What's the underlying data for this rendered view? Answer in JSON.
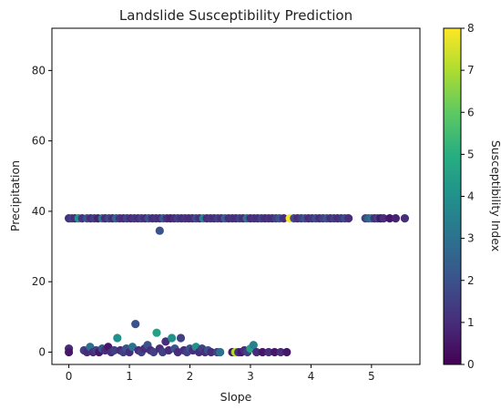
{
  "chart_data": {
    "type": "scatter",
    "title": "Landslide Susceptibility Prediction",
    "xlabel": "Slope",
    "ylabel": "Precipitation",
    "xlim": [
      -0.28,
      5.8
    ],
    "ylim": [
      -3.5,
      92
    ],
    "xticks": [
      0,
      1,
      2,
      3,
      4,
      5
    ],
    "yticks": [
      0,
      20,
      40,
      60,
      80
    ],
    "grid": false,
    "legend": "none",
    "colormap": "viridis",
    "colorbar": {
      "label": "Susceptibility Index",
      "min": 0,
      "max": 8,
      "ticks": [
        0,
        1,
        2,
        3,
        4,
        5,
        6,
        7,
        8
      ]
    },
    "series": [
      {
        "points": [
          [
            0.0,
            38,
            1.0
          ],
          [
            0.05,
            38,
            1.5
          ],
          [
            0.1,
            38,
            1.0
          ],
          [
            0.16,
            38,
            4.0
          ],
          [
            0.22,
            38,
            1.2
          ],
          [
            0.3,
            38,
            2.0
          ],
          [
            0.36,
            38,
            1.0
          ],
          [
            0.42,
            38,
            1.5
          ],
          [
            0.48,
            38,
            0.8
          ],
          [
            0.55,
            38,
            3.0
          ],
          [
            0.6,
            38,
            1.0
          ],
          [
            0.66,
            38,
            1.8
          ],
          [
            0.72,
            38,
            1.0
          ],
          [
            0.78,
            38,
            2.5
          ],
          [
            0.84,
            38,
            1.2
          ],
          [
            0.9,
            38,
            1.0
          ],
          [
            0.96,
            38,
            1.6
          ],
          [
            1.02,
            38,
            1.0
          ],
          [
            1.08,
            38,
            1.3
          ],
          [
            1.14,
            38,
            1.0
          ],
          [
            1.2,
            38,
            1.5
          ],
          [
            1.26,
            38,
            1.0
          ],
          [
            1.32,
            38,
            2.0
          ],
          [
            1.38,
            38,
            1.0
          ],
          [
            1.44,
            38,
            1.2
          ],
          [
            1.5,
            38,
            1.0
          ],
          [
            1.56,
            38,
            2.2
          ],
          [
            1.62,
            38,
            1.0
          ],
          [
            1.68,
            38,
            0.8
          ],
          [
            1.74,
            38,
            1.0
          ],
          [
            1.8,
            38,
            1.5
          ],
          [
            1.86,
            38,
            1.0
          ],
          [
            1.92,
            38,
            1.2
          ],
          [
            1.98,
            38,
            1.0
          ],
          [
            2.04,
            38,
            1.0
          ],
          [
            2.1,
            38,
            1.8
          ],
          [
            2.16,
            38,
            1.0
          ],
          [
            2.22,
            38,
            3.5
          ],
          [
            2.28,
            38,
            1.0
          ],
          [
            2.34,
            38,
            1.2
          ],
          [
            2.4,
            38,
            1.0
          ],
          [
            2.46,
            38,
            1.5
          ],
          [
            2.52,
            38,
            1.0
          ],
          [
            2.58,
            38,
            2.5
          ],
          [
            2.64,
            38,
            1.0
          ],
          [
            2.7,
            38,
            1.2
          ],
          [
            2.76,
            38,
            1.0
          ],
          [
            2.82,
            38,
            1.5
          ],
          [
            2.88,
            38,
            1.0
          ],
          [
            2.94,
            38,
            3.0
          ],
          [
            3.0,
            38,
            1.0
          ],
          [
            3.06,
            38,
            1.2
          ],
          [
            3.12,
            38,
            1.0
          ],
          [
            3.18,
            38,
            1.5
          ],
          [
            3.24,
            38,
            1.0
          ],
          [
            3.3,
            38,
            1.2
          ],
          [
            3.36,
            38,
            1.0
          ],
          [
            3.42,
            38,
            1.5
          ],
          [
            3.48,
            38,
            2.0
          ],
          [
            3.55,
            38,
            1.0
          ],
          [
            3.65,
            38,
            8.0
          ],
          [
            3.72,
            38,
            1.8
          ],
          [
            3.78,
            38,
            1.0
          ],
          [
            3.84,
            38,
            1.5
          ],
          [
            3.9,
            38,
            2.0
          ],
          [
            3.96,
            38,
            1.0
          ],
          [
            4.02,
            38,
            1.2
          ],
          [
            4.08,
            38,
            1.8
          ],
          [
            4.14,
            38,
            1.0
          ],
          [
            4.2,
            38,
            1.5
          ],
          [
            4.26,
            38,
            2.0
          ],
          [
            4.32,
            38,
            1.0
          ],
          [
            4.38,
            38,
            1.5
          ],
          [
            4.44,
            38,
            1.0
          ],
          [
            4.5,
            38,
            1.2
          ],
          [
            4.56,
            38,
            1.8
          ],
          [
            4.62,
            38,
            1.0
          ],
          [
            4.9,
            38,
            1.5
          ],
          [
            4.95,
            38,
            2.5
          ],
          [
            5.0,
            38,
            3.0
          ],
          [
            5.05,
            38,
            1.0
          ],
          [
            5.1,
            38,
            1.5
          ],
          [
            5.15,
            38,
            0.5
          ],
          [
            5.2,
            38,
            1.0
          ],
          [
            5.3,
            38,
            0.5
          ],
          [
            5.4,
            38,
            0.8
          ],
          [
            5.55,
            38,
            1.0
          ],
          [
            1.5,
            34.5,
            2.0
          ],
          [
            0.0,
            1,
            1.0
          ],
          [
            0.0,
            0,
            0.5
          ],
          [
            0.25,
            0.5,
            1.5
          ],
          [
            0.3,
            0,
            1.0
          ],
          [
            0.35,
            1.5,
            3.0
          ],
          [
            0.4,
            0,
            1.0
          ],
          [
            0.45,
            0.5,
            1.5
          ],
          [
            0.5,
            0,
            0.5
          ],
          [
            0.55,
            1,
            2.0
          ],
          [
            0.6,
            0.5,
            1.0
          ],
          [
            0.65,
            1.5,
            0.5
          ],
          [
            0.7,
            0,
            1.0
          ],
          [
            0.75,
            0.5,
            1.5
          ],
          [
            0.8,
            4,
            4.0
          ],
          [
            0.85,
            0.5,
            1.0
          ],
          [
            0.9,
            0,
            1.5
          ],
          [
            0.95,
            1,
            2.0
          ],
          [
            1.0,
            0,
            1.0
          ],
          [
            1.05,
            1.5,
            3.0
          ],
          [
            1.1,
            8,
            2.0
          ],
          [
            1.15,
            0.5,
            1.0
          ],
          [
            1.2,
            0,
            1.5
          ],
          [
            1.25,
            1,
            1.0
          ],
          [
            1.3,
            2,
            2.0
          ],
          [
            1.35,
            0.5,
            1.0
          ],
          [
            1.4,
            0,
            1.5
          ],
          [
            1.45,
            5.5,
            4.5
          ],
          [
            1.5,
            1,
            1.0
          ],
          [
            1.55,
            0,
            1.5
          ],
          [
            1.6,
            3,
            1.0
          ],
          [
            1.65,
            0.5,
            1.0
          ],
          [
            1.7,
            4,
            4.0
          ],
          [
            1.75,
            1,
            2.0
          ],
          [
            1.8,
            0,
            1.0
          ],
          [
            1.85,
            4,
            1.5
          ],
          [
            1.9,
            0.5,
            1.0
          ],
          [
            1.95,
            0,
            1.5
          ],
          [
            2.0,
            1,
            2.0
          ],
          [
            2.05,
            0.5,
            1.0
          ],
          [
            2.1,
            1.5,
            4.0
          ],
          [
            2.15,
            0,
            1.0
          ],
          [
            2.2,
            1,
            1.5
          ],
          [
            2.25,
            0,
            1.0
          ],
          [
            2.3,
            0.5,
            2.0
          ],
          [
            2.35,
            0,
            1.0
          ],
          [
            2.45,
            0,
            1.5
          ],
          [
            2.5,
            0,
            3.0
          ],
          [
            2.7,
            0,
            0.5
          ],
          [
            2.75,
            0,
            7.0
          ],
          [
            2.8,
            0,
            1.0
          ],
          [
            2.85,
            0,
            0.5
          ],
          [
            2.9,
            0.5,
            1.0
          ],
          [
            2.95,
            0,
            1.5
          ],
          [
            3.0,
            1,
            4.5
          ],
          [
            3.05,
            2,
            3.5
          ],
          [
            3.1,
            0,
            1.0
          ],
          [
            3.2,
            0,
            0.5
          ],
          [
            3.3,
            0,
            1.0
          ],
          [
            3.4,
            0,
            0.5
          ],
          [
            3.5,
            0,
            1.0
          ],
          [
            3.6,
            0,
            0.5
          ]
        ]
      }
    ]
  }
}
